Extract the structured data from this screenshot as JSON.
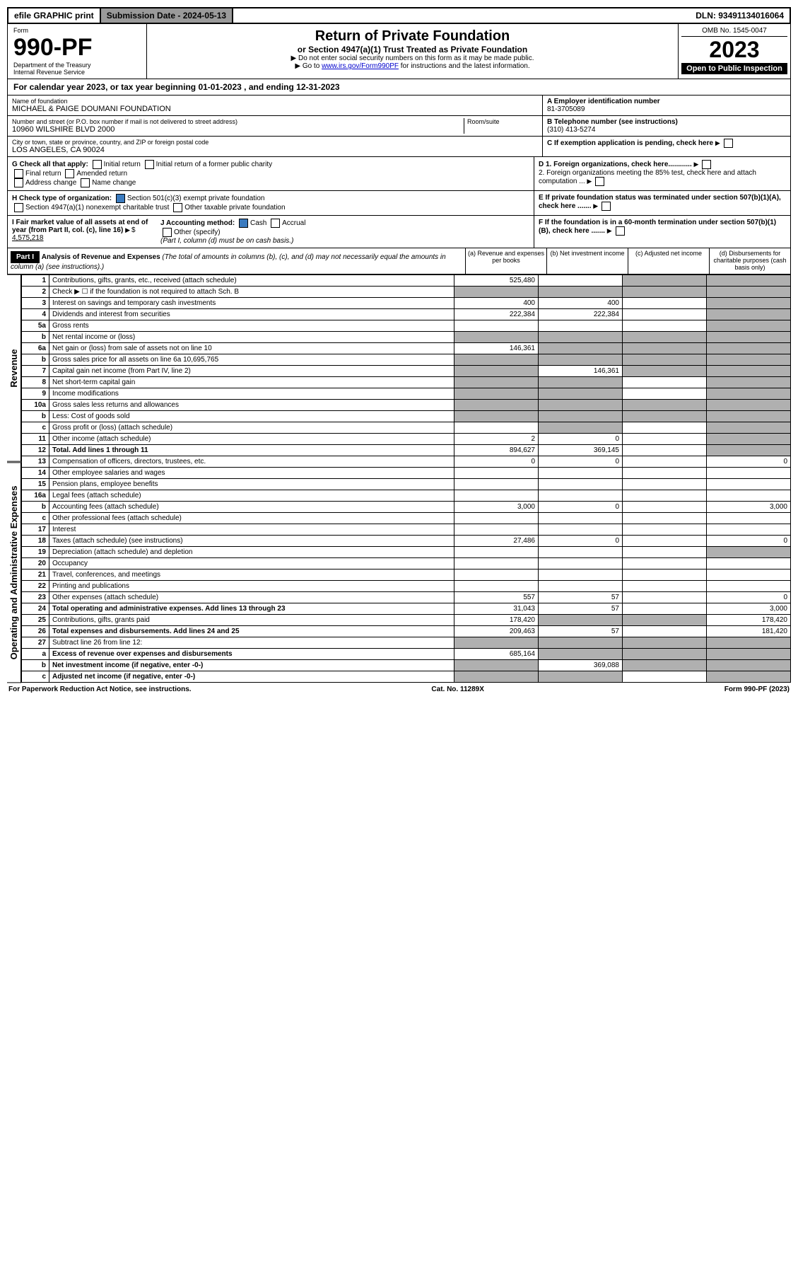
{
  "topbar": {
    "efile": "efile GRAPHIC print",
    "submission_label": "Submission Date - 2024-05-13",
    "dln": "DLN: 93491134016064"
  },
  "header": {
    "form_label": "Form",
    "form_number": "990-PF",
    "dept": "Department of the Treasury",
    "irs": "Internal Revenue Service",
    "title": "Return of Private Foundation",
    "subtitle": "or Section 4947(a)(1) Trust Treated as Private Foundation",
    "note1": "▶ Do not enter social security numbers on this form as it may be made public.",
    "note2_pre": "▶ Go to ",
    "note2_link": "www.irs.gov/Form990PF",
    "note2_post": " for instructions and the latest information.",
    "omb": "OMB No. 1545-0047",
    "year": "2023",
    "open": "Open to Public Inspection"
  },
  "cal_year": "For calendar year 2023, or tax year beginning 01-01-2023             , and ending 12-31-2023",
  "org": {
    "name_label": "Name of foundation",
    "name": "MICHAEL & PAIGE DOUMANI FOUNDATION",
    "street_label": "Number and street (or P.O. box number if mail is not delivered to street address)",
    "street": "10960 WILSHIRE BLVD 2000",
    "room_label": "Room/suite",
    "city_label": "City or town, state or province, country, and ZIP or foreign postal code",
    "city": "LOS ANGELES, CA  90024",
    "ein_label": "A Employer identification number",
    "ein": "81-3705089",
    "phone_label": "B Telephone number (see instructions)",
    "phone": "(310) 413-5274",
    "c_label": "C If exemption application is pending, check here",
    "d1": "D 1. Foreign organizations, check here............",
    "d2": "2. Foreign organizations meeting the 85% test, check here and attach computation ...",
    "e_label": "E  If private foundation status was terminated under section 507(b)(1)(A), check here .......",
    "f_label": "F  If the foundation is in a 60-month termination under section 507(b)(1)(B), check here .......",
    "g_label": "G Check all that apply:",
    "g_opts": [
      "Initial return",
      "Initial return of a former public charity",
      "Final return",
      "Amended return",
      "Address change",
      "Name change"
    ],
    "h_label": "H Check type of organization:",
    "h1": "Section 501(c)(3) exempt private foundation",
    "h2": "Section 4947(a)(1) nonexempt charitable trust",
    "h3": "Other taxable private foundation",
    "i_label": "I Fair market value of all assets at end of year (from Part II, col. (c), line 16)",
    "i_val": "4,575,218",
    "j_label": "J Accounting method:",
    "j_cash": "Cash",
    "j_accrual": "Accrual",
    "j_other": "Other (specify)",
    "j_note": "(Part I, column (d) must be on cash basis.)"
  },
  "part1": {
    "label": "Part I",
    "title": "Analysis of Revenue and Expenses",
    "title_note": "(The total of amounts in columns (b), (c), and (d) may not necessarily equal the amounts in column (a) (see instructions).)",
    "col_a": "(a)  Revenue and expenses per books",
    "col_b": "(b)  Net investment income",
    "col_c": "(c)  Adjusted net income",
    "col_d": "(d)  Disbursements for charitable purposes (cash basis only)"
  },
  "side_labels": {
    "revenue": "Revenue",
    "expenses": "Operating and Administrative Expenses"
  },
  "rows": [
    {
      "n": "1",
      "d": "Contributions, gifts, grants, etc., received (attach schedule)",
      "a": "525,480",
      "b": "",
      "c": "shaded",
      "dd": "shaded"
    },
    {
      "n": "2",
      "d": "Check ▶ ☐ if the foundation is not required to attach Sch. B",
      "a": "shaded",
      "b": "shaded",
      "c": "shaded",
      "dd": "shaded"
    },
    {
      "n": "3",
      "d": "Interest on savings and temporary cash investments",
      "a": "400",
      "b": "400",
      "c": "",
      "dd": "shaded"
    },
    {
      "n": "4",
      "d": "Dividends and interest from securities",
      "a": "222,384",
      "b": "222,384",
      "c": "",
      "dd": "shaded"
    },
    {
      "n": "5a",
      "d": "Gross rents",
      "a": "",
      "b": "",
      "c": "",
      "dd": "shaded"
    },
    {
      "n": "b",
      "d": "Net rental income or (loss)",
      "a": "shaded",
      "b": "shaded",
      "c": "shaded",
      "dd": "shaded"
    },
    {
      "n": "6a",
      "d": "Net gain or (loss) from sale of assets not on line 10",
      "a": "146,361",
      "b": "shaded",
      "c": "shaded",
      "dd": "shaded"
    },
    {
      "n": "b",
      "d": "Gross sales price for all assets on line 6a        10,695,765",
      "a": "shaded",
      "b": "shaded",
      "c": "shaded",
      "dd": "shaded"
    },
    {
      "n": "7",
      "d": "Capital gain net income (from Part IV, line 2)",
      "a": "shaded",
      "b": "146,361",
      "c": "shaded",
      "dd": "shaded"
    },
    {
      "n": "8",
      "d": "Net short-term capital gain",
      "a": "shaded",
      "b": "shaded",
      "c": "",
      "dd": "shaded"
    },
    {
      "n": "9",
      "d": "Income modifications",
      "a": "shaded",
      "b": "shaded",
      "c": "",
      "dd": "shaded"
    },
    {
      "n": "10a",
      "d": "Gross sales less returns and allowances",
      "a": "shaded",
      "b": "shaded",
      "c": "shaded",
      "dd": "shaded"
    },
    {
      "n": "b",
      "d": "Less: Cost of goods sold",
      "a": "shaded",
      "b": "shaded",
      "c": "shaded",
      "dd": "shaded"
    },
    {
      "n": "c",
      "d": "Gross profit or (loss) (attach schedule)",
      "a": "",
      "b": "shaded",
      "c": "",
      "dd": "shaded"
    },
    {
      "n": "11",
      "d": "Other income (attach schedule)",
      "a": "2",
      "b": "0",
      "c": "",
      "dd": "shaded"
    },
    {
      "n": "12",
      "d": "Total. Add lines 1 through 11",
      "a": "894,627",
      "b": "369,145",
      "c": "",
      "dd": "shaded",
      "bold": true
    },
    {
      "n": "13",
      "d": "Compensation of officers, directors, trustees, etc.",
      "a": "0",
      "b": "0",
      "c": "",
      "dd": "0"
    },
    {
      "n": "14",
      "d": "Other employee salaries and wages",
      "a": "",
      "b": "",
      "c": "",
      "dd": ""
    },
    {
      "n": "15",
      "d": "Pension plans, employee benefits",
      "a": "",
      "b": "",
      "c": "",
      "dd": ""
    },
    {
      "n": "16a",
      "d": "Legal fees (attach schedule)",
      "a": "",
      "b": "",
      "c": "",
      "dd": ""
    },
    {
      "n": "b",
      "d": "Accounting fees (attach schedule)",
      "a": "3,000",
      "b": "0",
      "c": "",
      "dd": "3,000"
    },
    {
      "n": "c",
      "d": "Other professional fees (attach schedule)",
      "a": "",
      "b": "",
      "c": "",
      "dd": ""
    },
    {
      "n": "17",
      "d": "Interest",
      "a": "",
      "b": "",
      "c": "",
      "dd": ""
    },
    {
      "n": "18",
      "d": "Taxes (attach schedule) (see instructions)",
      "a": "27,486",
      "b": "0",
      "c": "",
      "dd": "0"
    },
    {
      "n": "19",
      "d": "Depreciation (attach schedule) and depletion",
      "a": "",
      "b": "",
      "c": "",
      "dd": "shaded"
    },
    {
      "n": "20",
      "d": "Occupancy",
      "a": "",
      "b": "",
      "c": "",
      "dd": ""
    },
    {
      "n": "21",
      "d": "Travel, conferences, and meetings",
      "a": "",
      "b": "",
      "c": "",
      "dd": ""
    },
    {
      "n": "22",
      "d": "Printing and publications",
      "a": "",
      "b": "",
      "c": "",
      "dd": ""
    },
    {
      "n": "23",
      "d": "Other expenses (attach schedule)",
      "a": "557",
      "b": "57",
      "c": "",
      "dd": "0"
    },
    {
      "n": "24",
      "d": "Total operating and administrative expenses. Add lines 13 through 23",
      "a": "31,043",
      "b": "57",
      "c": "",
      "dd": "3,000",
      "bold": true
    },
    {
      "n": "25",
      "d": "Contributions, gifts, grants paid",
      "a": "178,420",
      "b": "shaded",
      "c": "shaded",
      "dd": "178,420"
    },
    {
      "n": "26",
      "d": "Total expenses and disbursements. Add lines 24 and 25",
      "a": "209,463",
      "b": "57",
      "c": "",
      "dd": "181,420",
      "bold": true
    },
    {
      "n": "27",
      "d": "Subtract line 26 from line 12:",
      "a": "shaded",
      "b": "shaded",
      "c": "shaded",
      "dd": "shaded"
    },
    {
      "n": "a",
      "d": "Excess of revenue over expenses and disbursements",
      "a": "685,164",
      "b": "shaded",
      "c": "shaded",
      "dd": "shaded",
      "bold": true
    },
    {
      "n": "b",
      "d": "Net investment income (if negative, enter -0-)",
      "a": "shaded",
      "b": "369,088",
      "c": "shaded",
      "dd": "shaded",
      "bold": true
    },
    {
      "n": "c",
      "d": "Adjusted net income (if negative, enter -0-)",
      "a": "shaded",
      "b": "shaded",
      "c": "",
      "dd": "shaded",
      "bold": true
    }
  ],
  "footer": {
    "left": "For Paperwork Reduction Act Notice, see instructions.",
    "mid": "Cat. No. 11289X",
    "right": "Form 990-PF (2023)"
  }
}
